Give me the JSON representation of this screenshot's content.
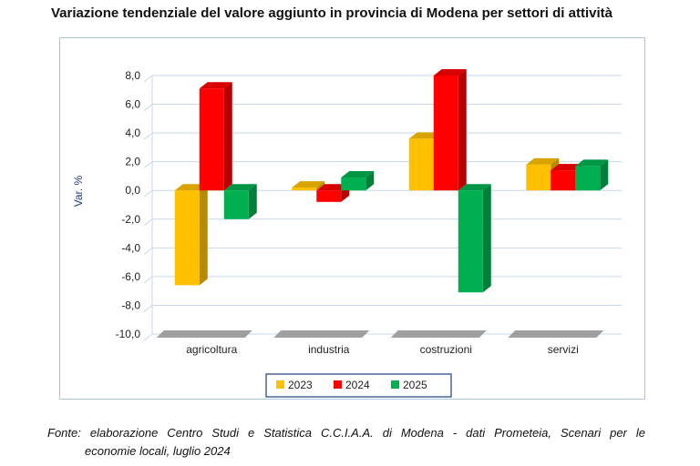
{
  "title": "Variazione tendenziale del valore aggiunto in provincia di Modena per settori di attività",
  "footnote": {
    "line1": "Fonte: elaborazione Centro Studi e Statistica C.C.I.A.A. di Modena - dati Prometeia, Scenari per le",
    "line2": "economie locali, luglio 2024"
  },
  "chart_data": {
    "type": "bar",
    "title": "Variazione tendenziale del valore aggiunto in provincia di Modena per settori di attività",
    "xlabel": "",
    "ylabel": "Var. %",
    "ylim": [
      -10,
      8
    ],
    "yticks": [
      "8,0",
      "6,0",
      "4,0",
      "2,0",
      "0,0",
      "-2,0",
      "-4,0",
      "-6,0",
      "-8,0",
      "-10,0"
    ],
    "categories": [
      "agricoltura",
      "industria",
      "costruzioni",
      "servizi"
    ],
    "series": [
      {
        "name": "2023",
        "color": "#ffc000",
        "values": [
          -6.6,
          0.2,
          3.6,
          1.8
        ]
      },
      {
        "name": "2024",
        "color": "#ff0000",
        "values": [
          7.1,
          -0.8,
          8.0,
          1.4
        ]
      },
      {
        "name": "2025",
        "color": "#00b050",
        "values": [
          -2.0,
          0.9,
          -7.1,
          1.7
        ]
      }
    ],
    "grid": true,
    "legend": "bottom"
  }
}
